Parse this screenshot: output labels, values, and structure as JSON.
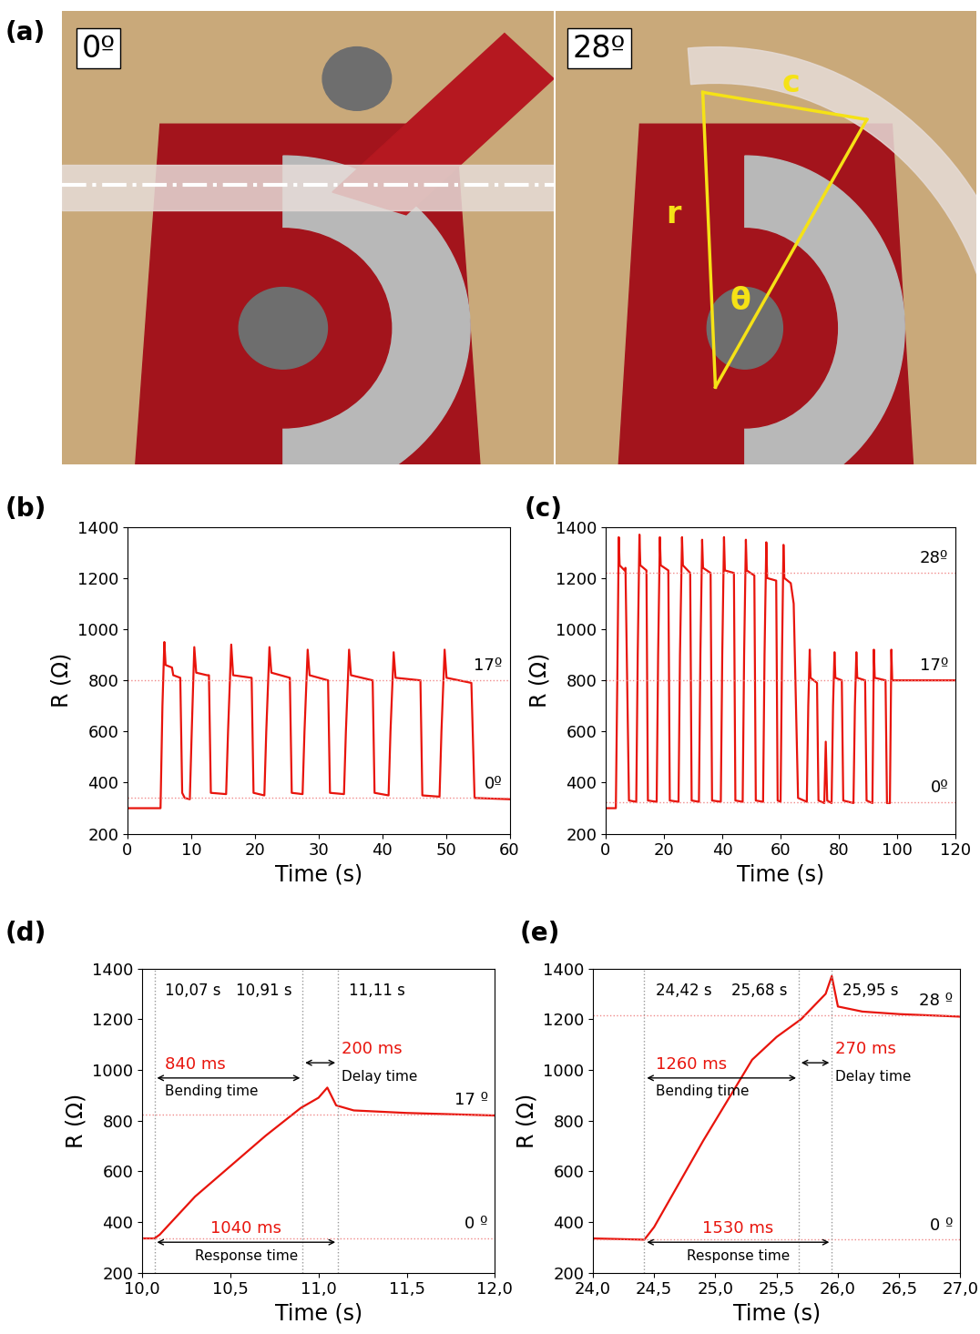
{
  "photos": {
    "panel": "(a)",
    "images": [
      {
        "label": "0º"
      },
      {
        "label": "28º",
        "geometry_labels": [
          "c",
          "r",
          "θ"
        ]
      }
    ]
  },
  "chart_data": [
    {
      "type": "line",
      "panel": "(b)",
      "x_label": "Time (s)",
      "y_label": "R (Ω)",
      "color": "#e8140c",
      "xlim": [
        0,
        60
      ],
      "xticks": [
        0,
        10,
        20,
        30,
        40,
        50,
        60
      ],
      "ylim": [
        200,
        1400
      ],
      "yticks": [
        200,
        400,
        600,
        800,
        1000,
        1200,
        1400
      ],
      "ref_lines": [
        {
          "value": 800,
          "label": "17º"
        },
        {
          "value": 340,
          "label": "0º"
        }
      ],
      "x": [
        0,
        5.2,
        5.5,
        5.8,
        6.0,
        7.0,
        7.2,
        8.3,
        8.6,
        9.0,
        9.8,
        10.1,
        10.5,
        10.8,
        12.5,
        12.8,
        13.1,
        15.5,
        15.8,
        16.3,
        16.6,
        19.5,
        19.8,
        21.5,
        21.8,
        22.3,
        22.6,
        25.5,
        25.8,
        27.5,
        27.8,
        28.3,
        28.6,
        31.5,
        31.8,
        34.0,
        34.3,
        34.8,
        35.1,
        38.5,
        38.8,
        41.0,
        41.3,
        41.8,
        42.1,
        46.0,
        46.3,
        49.0,
        49.3,
        49.8,
        50.1,
        54.0,
        54.5,
        60
      ],
      "values": [
        300,
        300,
        700,
        950,
        860,
        850,
        820,
        810,
        360,
        340,
        335,
        600,
        930,
        830,
        820,
        820,
        360,
        355,
        600,
        940,
        820,
        810,
        360,
        350,
        600,
        930,
        830,
        810,
        360,
        355,
        600,
        920,
        820,
        800,
        360,
        355,
        600,
        920,
        820,
        800,
        360,
        350,
        600,
        910,
        810,
        800,
        350,
        345,
        600,
        920,
        810,
        790,
        340,
        335
      ]
    },
    {
      "type": "line",
      "panel": "(c)",
      "x_label": "Time (s)",
      "y_label": "R (Ω)",
      "color": "#e8140c",
      "xlim": [
        0,
        120
      ],
      "xticks": [
        0,
        20,
        40,
        60,
        80,
        100,
        120
      ],
      "ylim": [
        200,
        1400
      ],
      "yticks": [
        200,
        400,
        600,
        800,
        1000,
        1200,
        1400
      ],
      "ref_lines": [
        {
          "value": 1220,
          "label": "28º"
        },
        {
          "value": 800,
          "label": "17º"
        },
        {
          "value": 325,
          "label": "0º"
        }
      ],
      "x": [
        0,
        3.5,
        4.0,
        4.5,
        4.8,
        6.5,
        6.8,
        8.0,
        10.5,
        11.0,
        11.6,
        11.9,
        14.0,
        14.5,
        17.5,
        18.0,
        18.6,
        18.9,
        21.5,
        22.0,
        25.0,
        25.5,
        26.2,
        26.5,
        29.0,
        29.5,
        32.0,
        32.5,
        33.1,
        33.4,
        36.0,
        36.5,
        39.5,
        40.0,
        40.6,
        40.9,
        44.0,
        44.5,
        47.0,
        47.5,
        48.1,
        48.4,
        51.0,
        51.5,
        54.0,
        54.5,
        55.1,
        55.4,
        58.5,
        59.0,
        60.0,
        60.5,
        61.0,
        61.3,
        63.5,
        64.5,
        66.0,
        69.0,
        69.5,
        70.0,
        70.3,
        72.5,
        73.0,
        75.0,
        75.5,
        76.0,
        77.5,
        78.0,
        78.5,
        78.8,
        81.0,
        81.5,
        85.0,
        85.5,
        86.0,
        86.3,
        89.0,
        89.5,
        91.5,
        92.0,
        92.3,
        96.0,
        96.5,
        97.5,
        98.0,
        98.3,
        120
      ],
      "values": [
        300,
        300,
        800,
        1360,
        1250,
        1230,
        1240,
        330,
        325,
        900,
        1370,
        1250,
        1230,
        330,
        325,
        900,
        1360,
        1250,
        1230,
        330,
        325,
        900,
        1360,
        1250,
        1220,
        330,
        325,
        900,
        1350,
        1240,
        1220,
        330,
        325,
        900,
        1360,
        1230,
        1220,
        330,
        325,
        900,
        1350,
        1230,
        1210,
        330,
        325,
        900,
        1340,
        1200,
        1190,
        330,
        325,
        900,
        1330,
        1200,
        1180,
        1100,
        340,
        325,
        700,
        920,
        810,
        790,
        330,
        320,
        560,
        330,
        320,
        700,
        910,
        810,
        800,
        330,
        320,
        700,
        910,
        810,
        800,
        330,
        320,
        920,
        810,
        800,
        320,
        320,
        920,
        800,
        800
      ]
    },
    {
      "type": "line",
      "panel": "(d)",
      "x_label": "Time (s)",
      "y_label": "R (Ω)",
      "color": "#e8140c",
      "xlim": [
        10.0,
        12.0
      ],
      "xticks": [
        {
          "value": 10.0,
          "label": "10,0"
        },
        {
          "value": 10.5,
          "label": "10,5"
        },
        {
          "value": 11.0,
          "label": "11,0"
        },
        {
          "value": 11.5,
          "label": "11,5"
        },
        {
          "value": 12.0,
          "label": "12,0"
        }
      ],
      "ylim": [
        200,
        1400
      ],
      "yticks": [
        200,
        400,
        600,
        800,
        1000,
        1200,
        1400
      ],
      "ref_lines": [
        {
          "value": 825,
          "label": "17 º"
        },
        {
          "value": 335,
          "label": "0 º"
        }
      ],
      "time_marks": [
        {
          "value": 10.07,
          "label": "10,07 s"
        },
        {
          "value": 10.91,
          "label": "10,91 s"
        },
        {
          "value": 11.11,
          "label": "11,11 s"
        }
      ],
      "intervals": [
        {
          "name": "Bending time",
          "start": 10.07,
          "end": 10.91,
          "label": "840 ms"
        },
        {
          "name": "Delay time",
          "start": 10.91,
          "end": 11.11,
          "label": "200 ms"
        },
        {
          "name": "Response time",
          "start": 10.07,
          "end": 11.11,
          "label": "1040 ms"
        }
      ],
      "x": [
        10.0,
        10.07,
        10.1,
        10.3,
        10.5,
        10.7,
        10.9,
        11.0,
        11.05,
        11.1,
        11.2,
        11.5,
        12.0
      ],
      "values": [
        335,
        335,
        350,
        500,
        620,
        740,
        850,
        890,
        930,
        860,
        840,
        830,
        820
      ]
    },
    {
      "type": "line",
      "panel": "(e)",
      "x_label": "Time (s)",
      "y_label": "R (Ω)",
      "color": "#e8140c",
      "xlim": [
        24.0,
        27.0
      ],
      "xticks": [
        {
          "value": 24.0,
          "label": "24,0"
        },
        {
          "value": 24.5,
          "label": "24,5"
        },
        {
          "value": 25.0,
          "label": "25,0"
        },
        {
          "value": 25.5,
          "label": "25,5"
        },
        {
          "value": 26.0,
          "label": "26,0"
        },
        {
          "value": 26.5,
          "label": "26,5"
        },
        {
          "value": 27.0,
          "label": "27,0"
        }
      ],
      "ylim": [
        200,
        1400
      ],
      "yticks": [
        200,
        400,
        600,
        800,
        1000,
        1200,
        1400
      ],
      "ref_lines": [
        {
          "value": 1215,
          "label": "28 º"
        },
        {
          "value": 330,
          "label": "0 º"
        }
      ],
      "time_marks": [
        {
          "value": 24.42,
          "label": "24,42 s"
        },
        {
          "value": 25.68,
          "label": "25,68 s"
        },
        {
          "value": 25.95,
          "label": "25,95 s"
        }
      ],
      "intervals": [
        {
          "name": "Bending time",
          "start": 24.42,
          "end": 25.68,
          "label": "1260 ms"
        },
        {
          "name": "Delay time",
          "start": 25.68,
          "end": 25.95,
          "label": "270 ms"
        },
        {
          "name": "Response time",
          "start": 24.42,
          "end": 25.95,
          "label": "1530 ms"
        }
      ],
      "x": [
        24.0,
        24.42,
        24.5,
        24.7,
        24.9,
        25.1,
        25.3,
        25.5,
        25.7,
        25.8,
        25.9,
        25.95,
        26.0,
        26.2,
        26.5,
        27.0
      ],
      "values": [
        335,
        330,
        380,
        550,
        720,
        880,
        1040,
        1130,
        1200,
        1250,
        1300,
        1370,
        1250,
        1230,
        1220,
        1210
      ]
    }
  ]
}
